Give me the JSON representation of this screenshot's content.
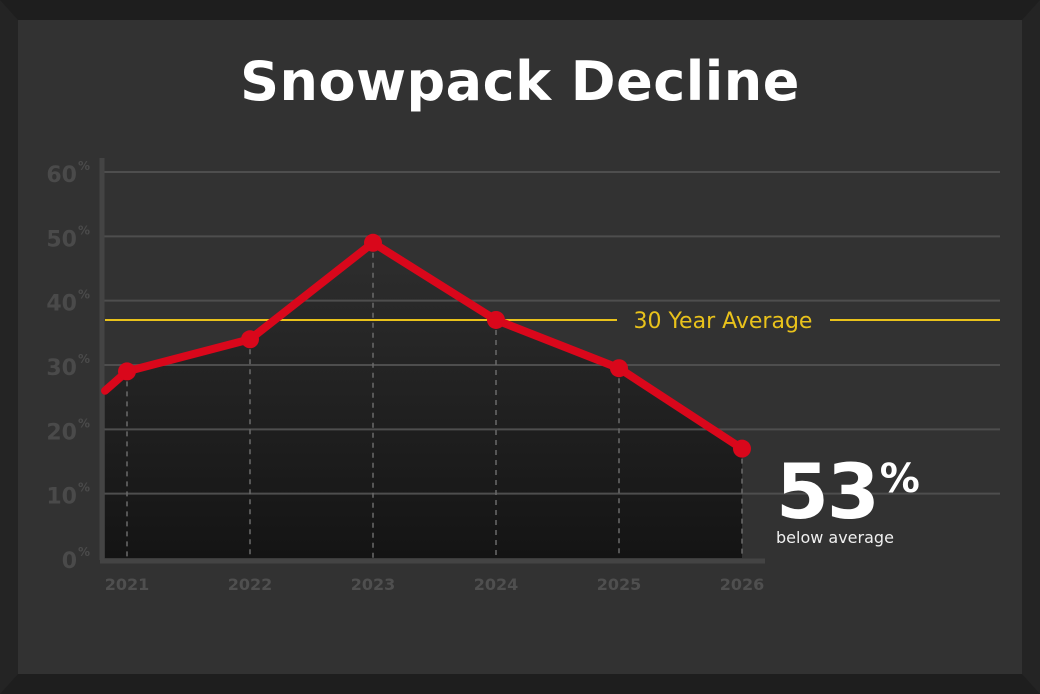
{
  "title": "Snowpack Decline",
  "chart_data": {
    "type": "line",
    "title": "Snowpack Decline",
    "x": [
      "2021",
      "2022",
      "2023",
      "2024",
      "2025",
      "2026"
    ],
    "series": [
      {
        "values": [
          29,
          34,
          49,
          37,
          29.5,
          17
        ]
      }
    ],
    "line_start_value": 26,
    "yticks": [
      0,
      10,
      20,
      30,
      40,
      50,
      60
    ],
    "ytick_suffix": "%",
    "ylim": [
      0,
      60
    ],
    "reference_line": {
      "label": "30 Year Average",
      "value": 37
    },
    "grid": true,
    "colors": {
      "line": "#d9071b",
      "average": "#e9c21b",
      "grid": "#4e4e4e"
    }
  },
  "callout": {
    "value": "53",
    "unit": "%",
    "label": "below average"
  }
}
